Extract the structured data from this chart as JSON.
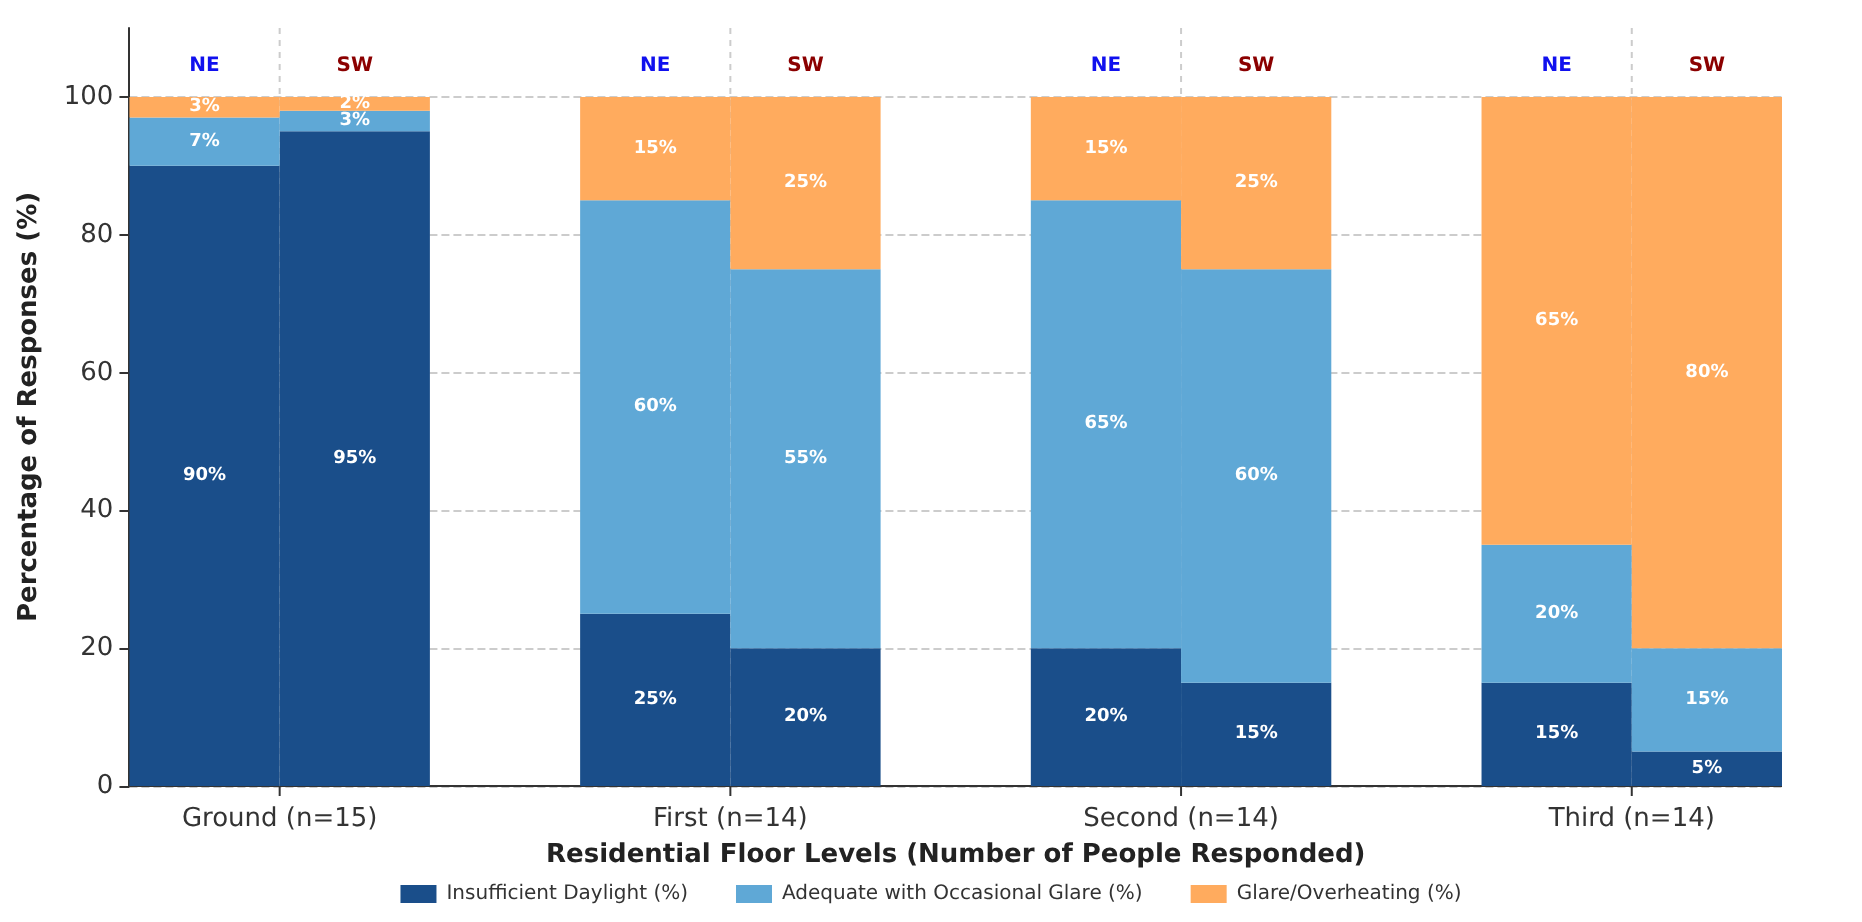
{
  "chart_data": {
    "type": "bar",
    "stacked": true,
    "xlabel": "Residential Floor Levels (Number of People Responded)",
    "ylabel": "Percentage of Responses (%)",
    "categories": [
      "NE",
      "SW",
      null,
      "NE",
      "SW",
      null,
      "NE",
      "SW",
      null,
      "NE",
      "SW"
    ],
    "annotations": [
      "Ground (n=15)",
      "First (n=14)",
      "Second (n=14)",
      "Third (n=14)"
    ],
    "series": [
      {
        "name": "Insufficient Daylight (%)",
        "color": "#1a4e8a",
        "values": [
          90,
          95,
          null,
          25,
          20,
          null,
          20,
          15,
          null,
          15,
          5
        ],
        "value_labels": [
          "90%",
          "95%",
          null,
          "25%",
          "20%",
          null,
          "20%",
          "15%",
          null,
          "15%",
          "5%"
        ]
      },
      {
        "name": "Adequate with Occasional Glare (%)",
        "color": "#5fa8d6",
        "values": [
          7,
          3,
          null,
          60,
          55,
          null,
          65,
          60,
          null,
          20,
          15
        ],
        "value_labels": [
          "7%",
          "3%",
          null,
          "60%",
          "55%",
          null,
          "65%",
          "60%",
          null,
          "20%",
          "15%"
        ]
      },
      {
        "name": "Glare/Overheating (%)",
        "color": "#ffab5e",
        "values": [
          3,
          2,
          null,
          15,
          25,
          null,
          15,
          25,
          null,
          65,
          80
        ],
        "value_labels": [
          "3%",
          "2%",
          null,
          "15%",
          "25%",
          null,
          "15%",
          "25%",
          null,
          "65%",
          "80%"
        ]
      }
    ],
    "ylim": [
      0,
      110
    ],
    "yticks": [
      0,
      20,
      40,
      60,
      80,
      100
    ],
    "grid": true,
    "legend": "bottom"
  }
}
